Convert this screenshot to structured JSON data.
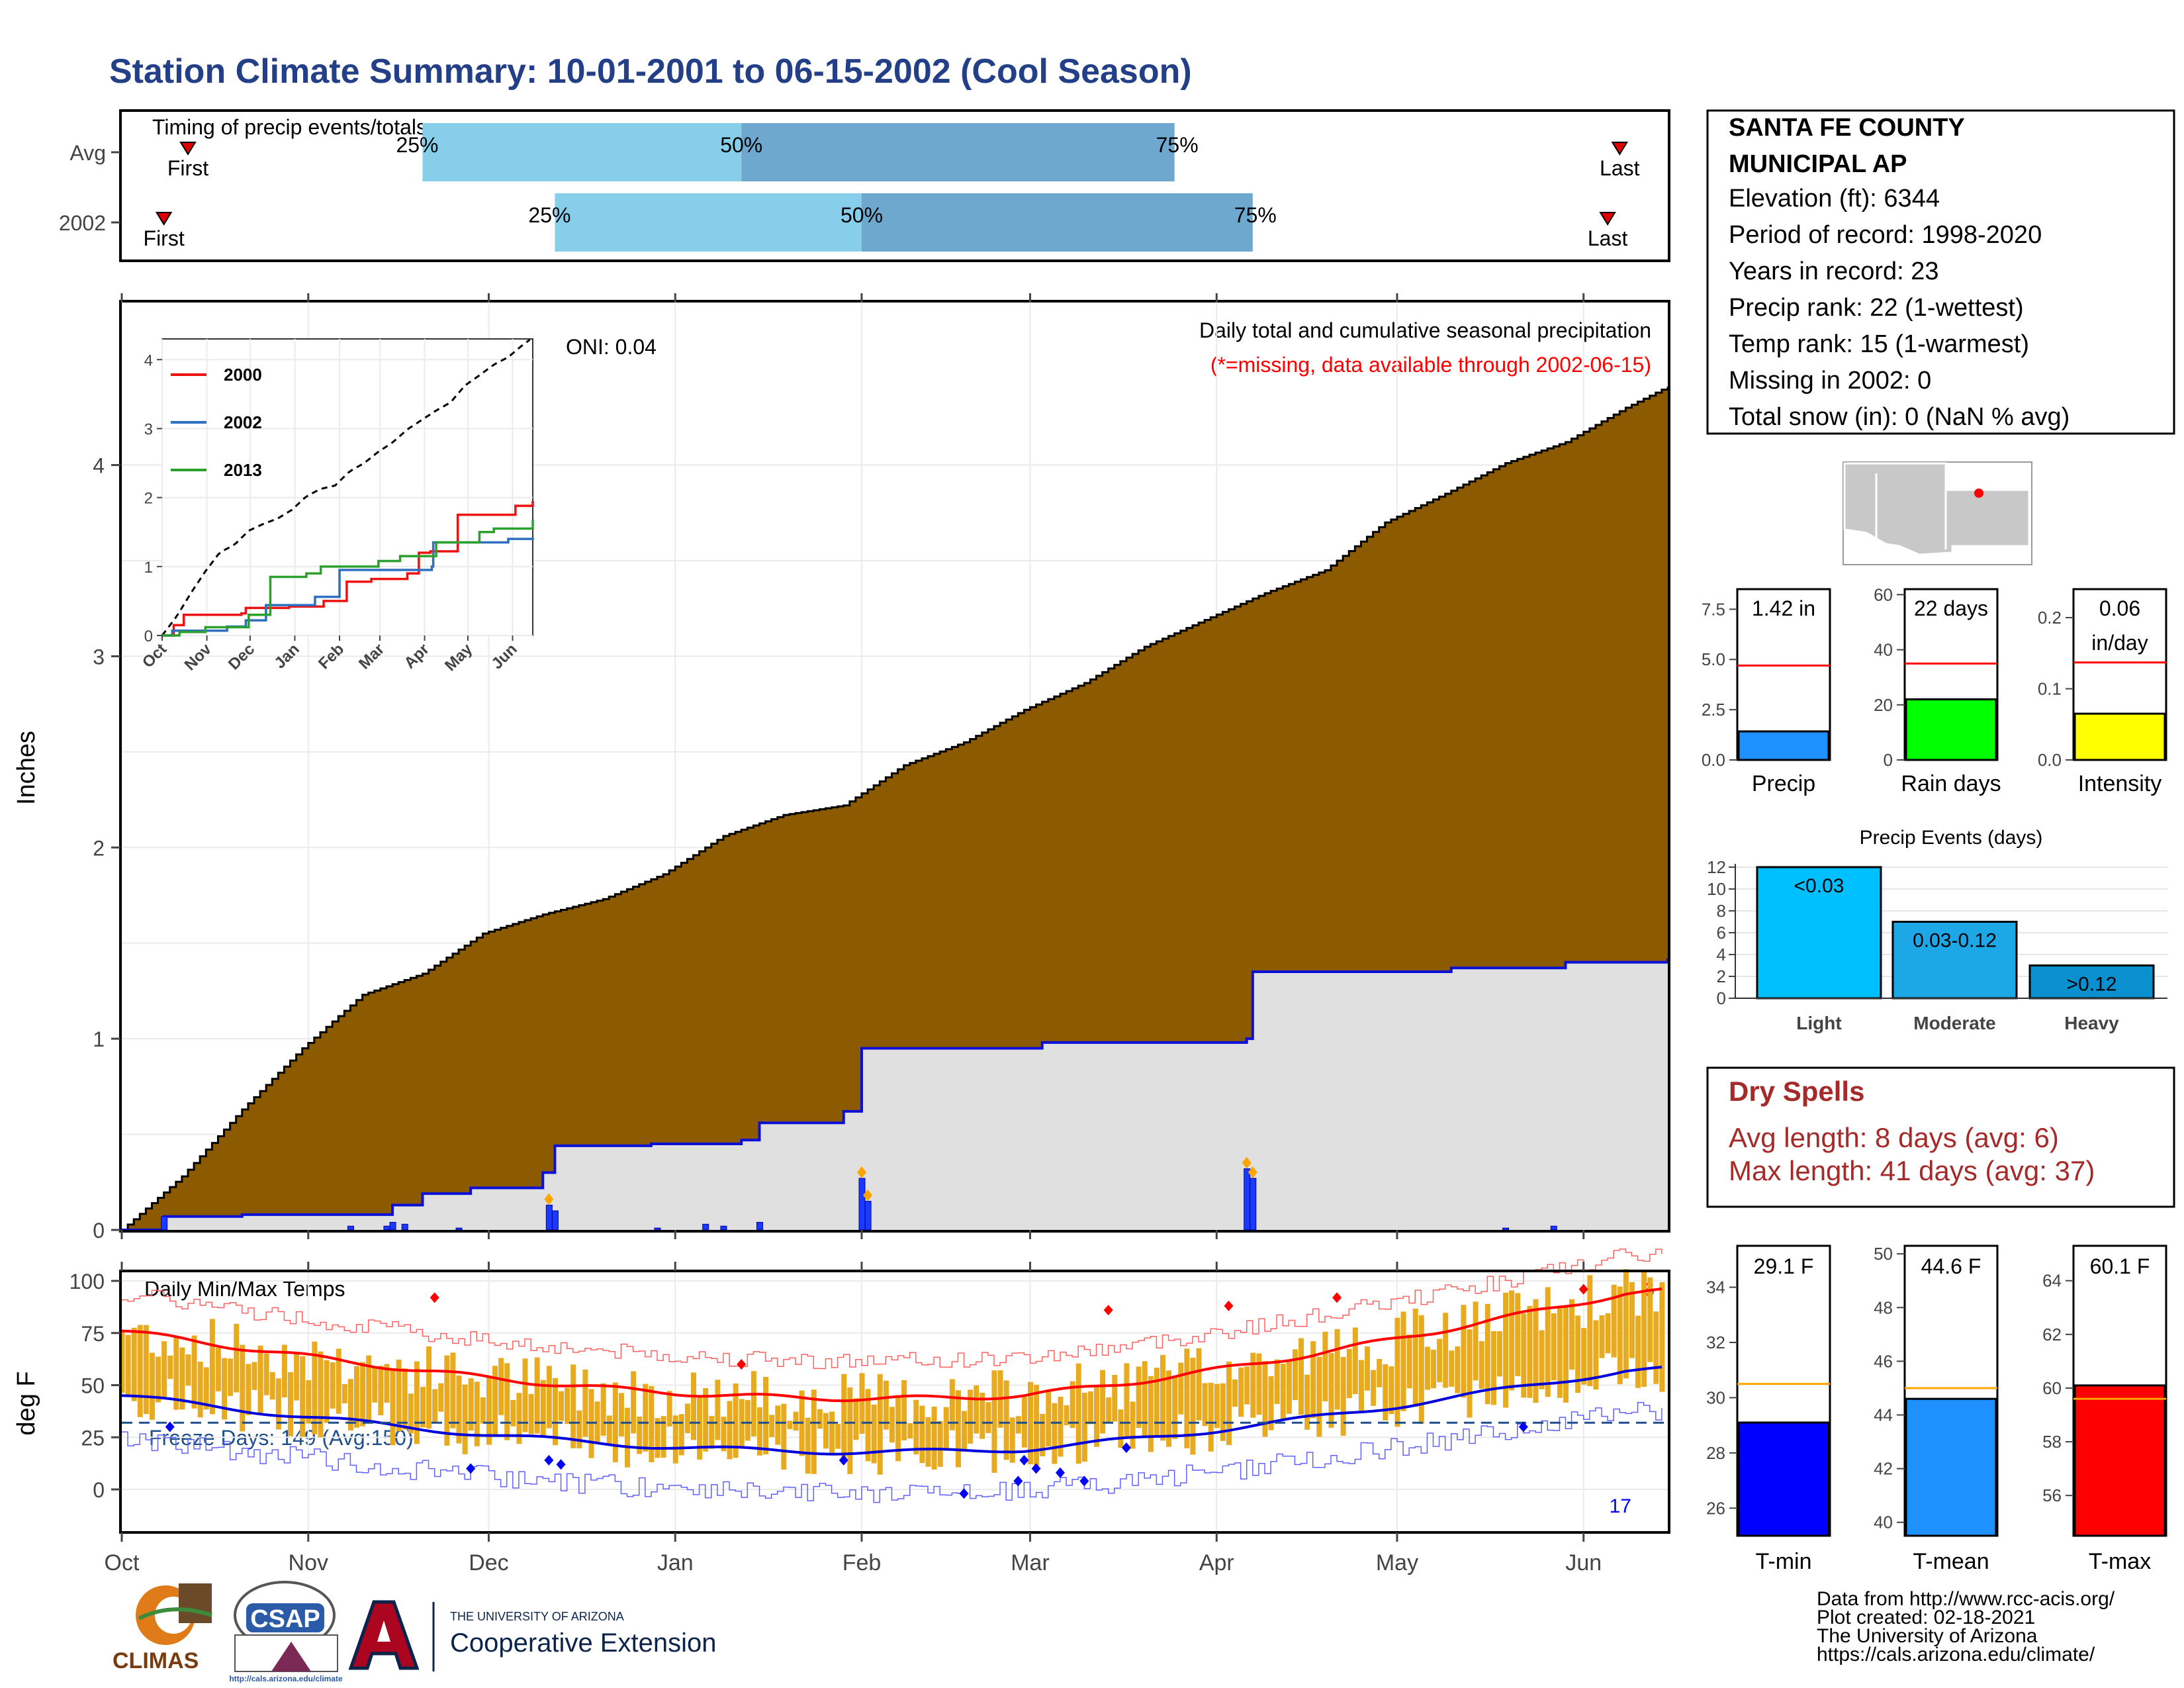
{
  "title": "Station Climate Summary: 10-01-2001 to 06-15-2002 (Cool Season)",
  "colors": {
    "title": "#233f87",
    "precip_fill": "#8c5a00",
    "normal_fill": "#e0e0e0",
    "normal_line": "#0a10d8",
    "light_blue": "#87ceeb",
    "mid_blue": "#6fa8cf",
    "temp_bar": "#e8aa1e",
    "tmax_line": "#ff0000",
    "tmin_line": "#0000dd",
    "dry_spells": "#a52a2a",
    "freeze_line": "#1f4e8c"
  },
  "timing": {
    "heading": "Timing of precip events/totals",
    "rows": [
      {
        "label": "Avg",
        "first_day": 11,
        "p25": 50,
        "p50": 103,
        "p75": 175,
        "last_day": 249
      },
      {
        "label": "2002",
        "first_day": 7,
        "p25": 72,
        "p50": 123,
        "p75": 188,
        "last_day": 247
      }
    ],
    "first_label": "First",
    "last_label": "Last",
    "p25_label": "25%",
    "p50_label": "50%",
    "p75_label": "75%"
  },
  "info_box": {
    "station_line1": "SANTA FE COUNTY",
    "station_line2": "MUNICIPAL AP",
    "lines": [
      "Elevation (ft): 6344",
      "Period of record: 1998-2020",
      "Years in record: 23",
      "Precip rank: 22 (1-wettest)",
      "Temp rank: 15 (1-warmest)",
      "Missing in 2002: 0",
      "Total snow (in): 0 (NaN % avg)"
    ]
  },
  "main_precip": {
    "ylabel": "Inches",
    "note1": "Daily total and cumulative seasonal precipitation",
    "note2": "(*=missing, data available through 2002-06-15)",
    "oni": "ONI: 0.04",
    "corner_count": "3",
    "y_ticks": [
      "0",
      "1",
      "2",
      "3",
      "4"
    ]
  },
  "inset": {
    "y_ticks": [
      "0",
      "1",
      "2",
      "3",
      "4"
    ],
    "x_ticks": [
      "Oct",
      "Nov",
      "Dec",
      "Jan",
      "Feb",
      "Mar",
      "Apr",
      "May",
      "Jun"
    ],
    "legend": [
      "2000",
      "2002",
      "2013"
    ]
  },
  "temps": {
    "ylabel": "deg F",
    "title": "Daily Min/Max Temps",
    "freeze": "Freeze Days: 149 (Avg:150)",
    "hot_count": "6",
    "cold_count": "17",
    "y_ticks": [
      "0",
      "25",
      "50",
      "75",
      "100"
    ],
    "x_ticks": [
      "Oct",
      "Nov",
      "Dec",
      "Jan",
      "Feb",
      "Mar",
      "Apr",
      "May",
      "Jun"
    ]
  },
  "small_bars": [
    {
      "label": "Precip",
      "value_text": "1.42 in",
      "value": 1.42,
      "avg": 4.7,
      "max": 8.5,
      "ticks": [
        "0.0",
        "2.5",
        "5.0",
        "7.5"
      ],
      "tick_vals": [
        0,
        2.5,
        5,
        7.5
      ],
      "color": "#1e90ff"
    },
    {
      "label": "Rain days",
      "value_text": "22 days",
      "value": 22,
      "avg": 35,
      "max": 62,
      "ticks": [
        "0",
        "20",
        "40",
        "60"
      ],
      "tick_vals": [
        0,
        20,
        40,
        60
      ],
      "color": "#00ff00"
    },
    {
      "label": "Intensity",
      "value_text": "0.06",
      "value_text2": "in/day",
      "value": 0.065,
      "avg": 0.137,
      "max": 0.24,
      "ticks": [
        "0.0",
        "0.1",
        "0.2"
      ],
      "tick_vals": [
        0,
        0.1,
        0.2
      ],
      "color": "#ffff00"
    }
  ],
  "events": {
    "title": "Precip Events (days)",
    "y_ticks": [
      "0",
      "2",
      "4",
      "6",
      "8",
      "10",
      "12"
    ],
    "bars": [
      {
        "label": "Light",
        "inner": "<0.03",
        "value": 12,
        "color": "#00bfff"
      },
      {
        "label": "Moderate",
        "inner": "0.03-0.12",
        "value": 7,
        "color": "#1ea7e6"
      },
      {
        "label": "Heavy",
        "inner": ">0.12",
        "value": 3,
        "color": "#0b90cf"
      }
    ]
  },
  "dry_spells": {
    "title": "Dry Spells",
    "avg": "Avg length: 8 days (avg: 6)",
    "max": "Max length: 41 days (avg: 37)"
  },
  "temp_bars": [
    {
      "label": "T-min",
      "value_text": "29.1 F",
      "value": 29.1,
      "avg": 30.5,
      "min": 25,
      "max": 35.5,
      "ticks": [
        "26",
        "28",
        "30",
        "32",
        "34"
      ],
      "tick_vals": [
        26,
        28,
        30,
        32,
        34
      ],
      "color": "#0000ff"
    },
    {
      "label": "T-mean",
      "value_text": "44.6 F",
      "value": 44.6,
      "avg": 45.0,
      "min": 39.5,
      "max": 50.3,
      "ticks": [
        "40",
        "42",
        "44",
        "46",
        "48",
        "50"
      ],
      "tick_vals": [
        40,
        42,
        44,
        46,
        48,
        50
      ],
      "color": "#1e90ff"
    },
    {
      "label": "T-max",
      "value_text": "60.1 F",
      "value": 60.1,
      "avg": 59.6,
      "min": 54.5,
      "max": 65.3,
      "ticks": [
        "56",
        "58",
        "60",
        "62",
        "64"
      ],
      "tick_vals": [
        56,
        58,
        60,
        62,
        64
      ],
      "color": "#ff0000"
    }
  ],
  "footer": {
    "lines": [
      "Data from http://www.rcc-acis.org/",
      "Plot created: 02-18-2021",
      "The University of Arizona",
      "https://cals.arizona.edu/climate/"
    ],
    "logo_climas": "CLIMAS",
    "logo_csap": "CSAP",
    "csap_url": "http://cals.arizona.edu/climate",
    "ua_small": "THE UNIVERSITY OF ARIZONA",
    "ua_big": "Cooperative Extension"
  },
  "chart_data": {
    "type": "area",
    "title": "Daily total and cumulative seasonal precipitation",
    "ylabel": "Inches",
    "ylim": [
      0,
      4.85
    ],
    "x_axis": [
      "Oct",
      "Nov",
      "Dec",
      "Jan",
      "Feb",
      "Mar",
      "Apr",
      "May",
      "Jun"
    ],
    "series": [
      {
        "name": "cumulative (brown area)",
        "day": [
          0,
          10,
          20,
          30,
          40,
          50,
          60,
          70,
          80,
          90,
          100,
          110,
          120,
          130,
          140,
          150,
          160,
          170,
          180,
          190,
          200,
          210,
          220,
          230,
          240,
          250,
          257
        ],
        "values": [
          0,
          0.28,
          0.63,
          0.95,
          1.23,
          1.34,
          1.55,
          1.65,
          1.73,
          1.86,
          2.06,
          2.17,
          2.22,
          2.43,
          2.55,
          2.72,
          2.86,
          3.05,
          3.19,
          3.33,
          3.45,
          3.7,
          3.85,
          4.01,
          4.12,
          4.3,
          4.41
        ]
      },
      {
        "name": "cumulative 2002 (blue line)",
        "steps": [
          [
            0,
            0
          ],
          [
            7,
            0.07
          ],
          [
            20,
            0.08
          ],
          [
            45,
            0.13
          ],
          [
            50,
            0.19
          ],
          [
            58,
            0.22
          ],
          [
            70,
            0.3
          ],
          [
            72,
            0.44
          ],
          [
            88,
            0.45
          ],
          [
            103,
            0.47
          ],
          [
            106,
            0.56
          ],
          [
            120,
            0.57
          ],
          [
            120,
            0.62
          ],
          [
            123,
            0.95
          ],
          [
            153,
            0.98
          ],
          [
            187,
            1.0
          ],
          [
            188,
            1.35
          ],
          [
            221,
            1.37
          ],
          [
            240,
            1.4
          ],
          [
            257,
            1.42
          ]
        ]
      },
      {
        "name": "daily",
        "events": [
          [
            7,
            0.07
          ],
          [
            38,
            0.02
          ],
          [
            44,
            0.02
          ],
          [
            45,
            0.04
          ],
          [
            47,
            0.03
          ],
          [
            56,
            0.01
          ],
          [
            71,
            0.13
          ],
          [
            72,
            0.1
          ],
          [
            89,
            0.01
          ],
          [
            97,
            0.03
          ],
          [
            100,
            0.02
          ],
          [
            106,
            0.04
          ],
          [
            123,
            0.27
          ],
          [
            124,
            0.15
          ],
          [
            187,
            0.32
          ],
          [
            188,
            0.27
          ],
          [
            230,
            0.01
          ],
          [
            238,
            0.02
          ]
        ]
      }
    ]
  }
}
